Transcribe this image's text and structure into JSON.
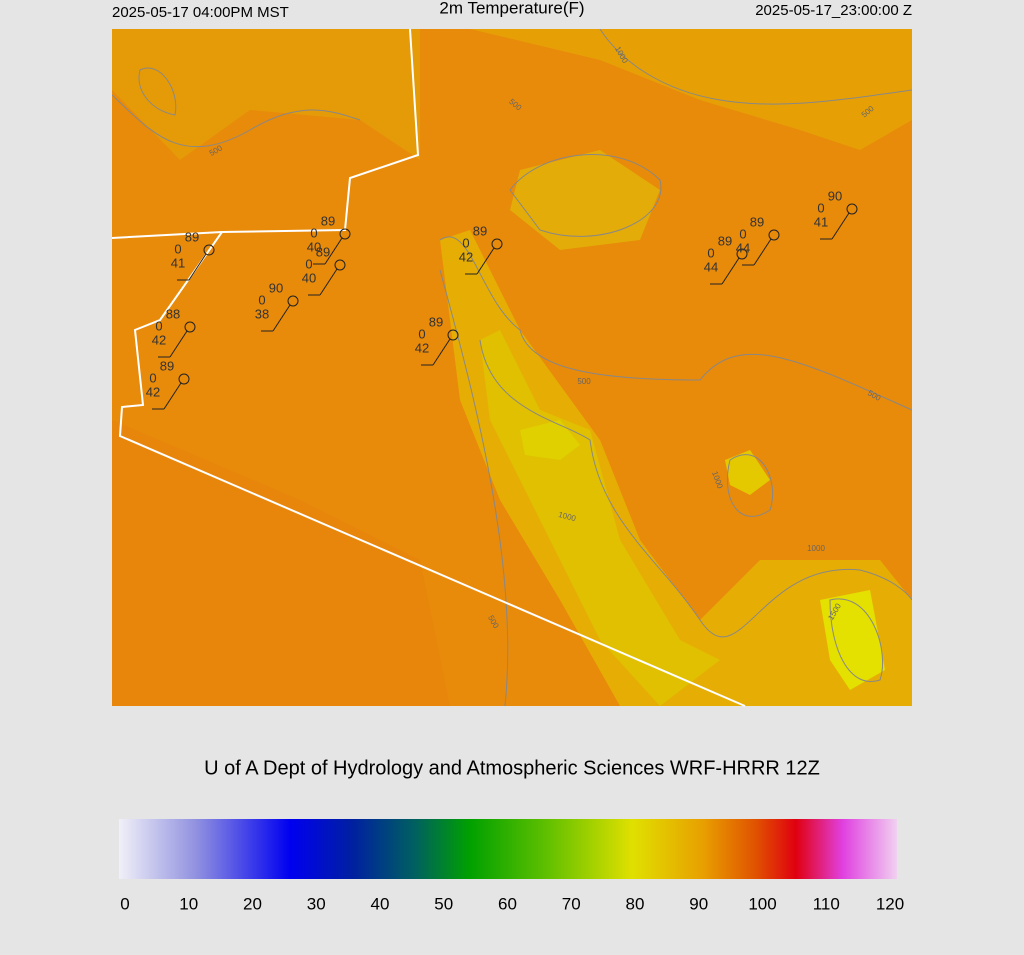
{
  "header": {
    "local_time": "2025-05-17 04:00PM MST",
    "title": "2m Temperature(F)",
    "valid_time": "2025-05-17_23:00:00 Z"
  },
  "stations": [
    {
      "temp": "89",
      "mid": "0",
      "dew": "41"
    },
    {
      "temp": "89",
      "mid": "0",
      "dew": "40"
    },
    {
      "temp": "89",
      "mid": "0",
      "dew": "40"
    },
    {
      "temp": "90",
      "mid": "0",
      "dew": "38"
    },
    {
      "temp": "88",
      "mid": "0",
      "dew": "42"
    },
    {
      "temp": "89",
      "mid": "0",
      "dew": "42"
    },
    {
      "temp": "89",
      "mid": "0",
      "dew": "42"
    },
    {
      "temp": "89",
      "mid": "0",
      "dew": "42"
    },
    {
      "temp": "89",
      "mid": "0",
      "dew": "44"
    },
    {
      "temp": "89",
      "mid": "0",
      "dew": "44"
    },
    {
      "temp": "90",
      "mid": "0",
      "dew": "41"
    }
  ],
  "contour_labels": [
    "1000",
    "500",
    "500",
    "500",
    "500",
    "500",
    "1000",
    "1000",
    "1000",
    "1500",
    "500"
  ],
  "credit": "U of A Dept of Hydrology and Atmospheric Sciences WRF-HRRR 12Z",
  "colorbar": {
    "ticks": [
      0,
      10,
      20,
      30,
      40,
      50,
      60,
      70,
      80,
      90,
      100,
      110,
      120
    ]
  }
}
